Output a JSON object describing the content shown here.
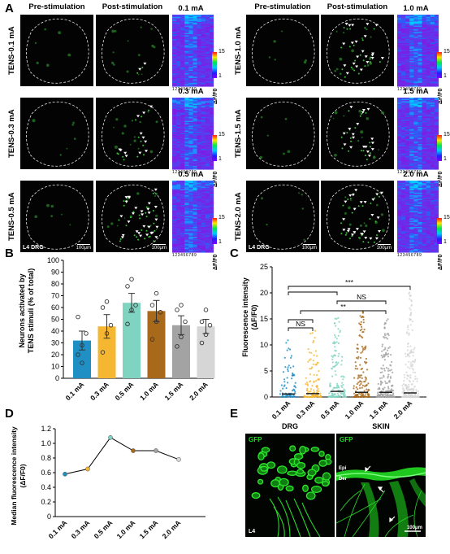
{
  "panel_labels": {
    "a": "A",
    "b": "B",
    "c": "C",
    "d": "D",
    "e": "E"
  },
  "panel_a": {
    "col_pre": "Pre-stimulation",
    "col_post": "Post-stimulation",
    "rows": [
      {
        "label": "TENS-0.1 mA",
        "heat_title": "0.1 mA"
      },
      {
        "label": "TENS-0.3 mA",
        "heat_title": "0.3 mA"
      },
      {
        "label": "TENS-0.5 mA",
        "heat_title": "0.5 mA"
      },
      {
        "label": "TENS-1.0 mA",
        "heat_title": "1.0 mA"
      },
      {
        "label": "TENS-1.5 mA",
        "heat_title": "1.5 mA"
      },
      {
        "label": "TENS-2.0 mA",
        "heat_title": "2.0 mA"
      }
    ],
    "colorbar_max": "15",
    "colorbar_min": "1",
    "colorbar_label": "ΔF/F0",
    "heat_ticks": "123456789",
    "drg_label": "L4 DRG",
    "scale_bar": "100μm"
  },
  "panel_b": {
    "ylabel_line1": "Neurons activated by",
    "ylabel_line2": "TENS stimuli (% of total)",
    "yticks": [
      "0",
      "10",
      "20",
      "30",
      "40",
      "50",
      "60",
      "70",
      "80",
      "90",
      "100"
    ]
  },
  "panel_c": {
    "ylabel_line1": "Fluorescence intensity",
    "ylabel_line2": "(ΔF/F0)",
    "yticks": [
      "0",
      "5",
      "10",
      "15",
      "20",
      "25"
    ],
    "sig": [
      "NS",
      "**",
      "NS",
      "***"
    ]
  },
  "panel_d": {
    "ylabel_line1": "Median fluorescence intensity",
    "ylabel_line2": "(ΔF/F0)",
    "yticks": [
      "0",
      "0.2",
      "0.4",
      "0.6",
      "0.8",
      "1.0",
      "1.2"
    ]
  },
  "panel_e": {
    "drg_title": "DRG",
    "skin_title": "SKIN",
    "gfp": "GFP",
    "l4": "L4",
    "epi": "Epi",
    "der": "Der",
    "scale": "100μm"
  },
  "colors": {
    "0.1 mA": "#1f8fc4",
    "0.3 mA": "#f5b731",
    "0.5 mA": "#7fd3c1",
    "1.0 mA": "#a8691a",
    "1.5 mA": "#a3a3a3",
    "2.0 mA": "#d6d6d6"
  },
  "chart_data": [
    {
      "type": "bar",
      "panel": "B",
      "categories": [
        "0.1 mA",
        "0.3 mA",
        "0.5 mA",
        "1.0 mA",
        "1.5 mA",
        "2.0 mA"
      ],
      "values": [
        32,
        44,
        64,
        57,
        45,
        44
      ],
      "errors": [
        8,
        10,
        8,
        9,
        8,
        6
      ],
      "points": [
        [
          20,
          28,
          38,
          52,
          13
        ],
        [
          22,
          38,
          45,
          60,
          65
        ],
        [
          46,
          58,
          62,
          78,
          84
        ],
        [
          33,
          48,
          56,
          62,
          72
        ],
        [
          27,
          35,
          48,
          58,
          62
        ],
        [
          30,
          37,
          45,
          48,
          58
        ]
      ],
      "ylabel": "Neurons activated by TENS stimuli (% of total)",
      "ylim": [
        0,
        100
      ]
    },
    {
      "type": "scatter",
      "panel": "C",
      "categories": [
        "0.1 mA",
        "0.3 mA",
        "0.5 mA",
        "1.0 mA",
        "1.5 mA",
        "2.0 mA"
      ],
      "medians": [
        0.58,
        0.65,
        1.08,
        0.9,
        0.9,
        0.78
      ],
      "max_values": [
        11.5,
        13,
        15.5,
        16.5,
        15,
        21
      ],
      "ylabel": "Fluorescence intensity (ΔF/F0)",
      "ylim": [
        0,
        25
      ]
    },
    {
      "type": "line",
      "panel": "D",
      "categories": [
        "0.1 mA",
        "0.3 mA",
        "0.5 mA",
        "1.0 mA",
        "1.5 mA",
        "2.0 mA"
      ],
      "values": [
        0.58,
        0.65,
        1.08,
        0.9,
        0.9,
        0.78
      ],
      "ylabel": "Median fluorescence intensity (ΔF/F0)",
      "ylim": [
        0,
        1.2
      ]
    }
  ]
}
